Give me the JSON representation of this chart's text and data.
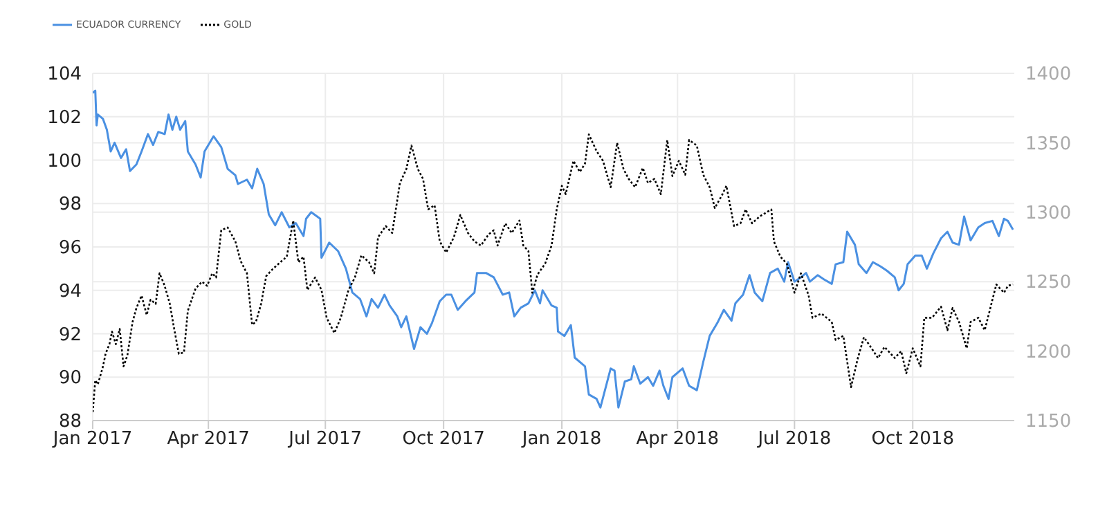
{
  "chart_data": {
    "type": "line",
    "legend": "top left",
    "grid": true,
    "xlim": [
      "2017-01-01",
      "2018-12-19"
    ],
    "xticks": [
      {
        "value": "2017-01-01",
        "label": "Jan 2017"
      },
      {
        "value": "2017-04-01",
        "label": "Apr 2017"
      },
      {
        "value": "2017-07-01",
        "label": "Jul 2017"
      },
      {
        "value": "2017-10-01",
        "label": "Oct 2017"
      },
      {
        "value": "2018-01-01",
        "label": "Jan 2018"
      },
      {
        "value": "2018-04-01",
        "label": "Apr 2018"
      },
      {
        "value": "2018-07-01",
        "label": "Jul 2018"
      },
      {
        "value": "2018-10-01",
        "label": "Oct 2018"
      }
    ],
    "ylim": [
      88,
      104
    ],
    "yticks": [
      88,
      90,
      92,
      94,
      96,
      98,
      100,
      102,
      104
    ],
    "y2lim": [
      1150,
      1400
    ],
    "y2ticks": [
      1150,
      1200,
      1250,
      1300,
      1350,
      1400
    ],
    "series": [
      {
        "name": "ECUADOR CURRENCY",
        "color": "#4a90e2",
        "line_style": "solid",
        "x": [
          "2017-01-01",
          "2017-01-03",
          "2017-01-04",
          "2017-01-05",
          "2017-01-09",
          "2017-01-12",
          "2017-01-15",
          "2017-01-18",
          "2017-01-23",
          "2017-01-27",
          "2017-01-30",
          "2017-02-04",
          "2017-02-08",
          "2017-02-13",
          "2017-02-17",
          "2017-02-21",
          "2017-02-26",
          "2017-03-01",
          "2017-03-04",
          "2017-03-07",
          "2017-03-10",
          "2017-03-14",
          "2017-03-16",
          "2017-03-22",
          "2017-03-26",
          "2017-03-29",
          "2017-04-05",
          "2017-04-11",
          "2017-04-16",
          "2017-04-22",
          "2017-04-24",
          "2017-05-01",
          "2017-05-05",
          "2017-05-09",
          "2017-05-14",
          "2017-05-18",
          "2017-05-23",
          "2017-05-28",
          "2017-06-03",
          "2017-06-08",
          "2017-06-14",
          "2017-06-16",
          "2017-06-20",
          "2017-06-27",
          "2017-06-28",
          "2017-07-04",
          "2017-07-11",
          "2017-07-17",
          "2017-07-22",
          "2017-07-28",
          "2017-08-02",
          "2017-08-06",
          "2017-08-11",
          "2017-08-16",
          "2017-08-20",
          "2017-08-26",
          "2017-08-29",
          "2017-09-02",
          "2017-09-08",
          "2017-09-13",
          "2017-09-18",
          "2017-09-22",
          "2017-09-28",
          "2017-10-03",
          "2017-10-07",
          "2017-10-12",
          "2017-10-18",
          "2017-10-25",
          "2017-10-27",
          "2017-11-03",
          "2017-11-09",
          "2017-11-16",
          "2017-11-21",
          "2017-11-25",
          "2017-11-30",
          "2017-12-06",
          "2017-12-11",
          "2017-12-15",
          "2017-12-17",
          "2017-12-24",
          "2017-12-28",
          "2017-12-29",
          "2018-01-03",
          "2018-01-08",
          "2018-01-11",
          "2018-01-19",
          "2018-01-22",
          "2018-01-28",
          "2018-01-31",
          "2018-02-04",
          "2018-02-08",
          "2018-02-11",
          "2018-02-14",
          "2018-02-19",
          "2018-02-24",
          "2018-02-26",
          "2018-03-03",
          "2018-03-09",
          "2018-03-13",
          "2018-03-18",
          "2018-03-21",
          "2018-03-25",
          "2018-03-28",
          "2018-04-05",
          "2018-04-10",
          "2018-04-16",
          "2018-04-21",
          "2018-04-26",
          "2018-05-02",
          "2018-05-07",
          "2018-05-13",
          "2018-05-16",
          "2018-05-22",
          "2018-05-27",
          "2018-05-31",
          "2018-06-06",
          "2018-06-12",
          "2018-06-18",
          "2018-06-23",
          "2018-06-26",
          "2018-07-01",
          "2018-07-06",
          "2018-07-10",
          "2018-07-13",
          "2018-07-19",
          "2018-07-24",
          "2018-07-30",
          "2018-08-02",
          "2018-08-08",
          "2018-08-11",
          "2018-08-17",
          "2018-08-20",
          "2018-08-26",
          "2018-08-31",
          "2018-09-06",
          "2018-09-11",
          "2018-09-17",
          "2018-09-20",
          "2018-09-24",
          "2018-09-27",
          "2018-10-03",
          "2018-10-08",
          "2018-10-12",
          "2018-10-17",
          "2018-10-23",
          "2018-10-28",
          "2018-11-01",
          "2018-11-06",
          "2018-11-10",
          "2018-11-15",
          "2018-11-21",
          "2018-11-26",
          "2018-12-02",
          "2018-12-07",
          "2018-12-11",
          "2018-12-14",
          "2018-12-18"
        ],
        "values": [
          103.1,
          103.2,
          101.6,
          102.1,
          101.9,
          101.4,
          100.4,
          100.8,
          100.1,
          100.5,
          99.5,
          99.8,
          100.4,
          101.2,
          100.7,
          101.3,
          101.2,
          102.1,
          101.4,
          102,
          101.4,
          101.8,
          100.4,
          99.8,
          99.2,
          100.4,
          101.1,
          100.6,
          99.6,
          99.3,
          98.9,
          99.1,
          98.7,
          99.6,
          98.9,
          97.5,
          97,
          97.6,
          96.9,
          97.1,
          96.5,
          97.3,
          97.6,
          97.3,
          95.5,
          96.2,
          95.8,
          95,
          93.9,
          93.6,
          92.8,
          93.6,
          93.2,
          93.8,
          93.3,
          92.8,
          92.3,
          92.8,
          91.3,
          92.3,
          92,
          92.5,
          93.5,
          93.8,
          93.8,
          93.1,
          93.5,
          93.9,
          94.8,
          94.8,
          94.6,
          93.8,
          93.9,
          92.8,
          93.2,
          93.4,
          94,
          93.4,
          94,
          93.3,
          93.2,
          92.1,
          91.9,
          92.4,
          90.9,
          90.5,
          89.2,
          89,
          88.6,
          89.5,
          90.4,
          90.3,
          88.6,
          89.8,
          89.9,
          90.5,
          89.7,
          90,
          89.6,
          90.3,
          89.6,
          89,
          90,
          90.4,
          89.6,
          89.4,
          90.7,
          91.9,
          92.5,
          93.1,
          92.6,
          93.4,
          93.8,
          94.7,
          93.9,
          93.5,
          94.8,
          95,
          94.4,
          95.3,
          94.4,
          94.6,
          94.8,
          94.4,
          94.7,
          94.5,
          94.3,
          95.2,
          95.3,
          96.7,
          96.1,
          95.2,
          94.8,
          95.3,
          95.1,
          94.9,
          94.6,
          94,
          94.3,
          95.2,
          95.6,
          95.6,
          95,
          95.7,
          96.4,
          96.7,
          96.2,
          96.1,
          97.4,
          96.3,
          96.9,
          97.1,
          97.2,
          96.5,
          97.3,
          97.2,
          96.8
        ]
      },
      {
        "name": "GOLD",
        "color": "#000000",
        "line_style": "dotted",
        "axis": "y2",
        "x": [
          "2017-01-01",
          "2017-01-03",
          "2017-01-05",
          "2017-01-09",
          "2017-01-11",
          "2017-01-14",
          "2017-01-16",
          "2017-01-19",
          "2017-01-22",
          "2017-01-25",
          "2017-01-28",
          "2017-02-01",
          "2017-02-04",
          "2017-02-08",
          "2017-02-12",
          "2017-02-15",
          "2017-02-19",
          "2017-02-22",
          "2017-02-26",
          "2017-03-02",
          "2017-03-05",
          "2017-03-09",
          "2017-03-13",
          "2017-03-16",
          "2017-03-22",
          "2017-03-27",
          "2017-03-31",
          "2017-04-04",
          "2017-04-07",
          "2017-04-11",
          "2017-04-16",
          "2017-04-22",
          "2017-04-26",
          "2017-05-01",
          "2017-05-05",
          "2017-05-08",
          "2017-05-12",
          "2017-05-16",
          "2017-05-21",
          "2017-05-27",
          "2017-06-01",
          "2017-06-06",
          "2017-06-10",
          "2017-06-14",
          "2017-06-17",
          "2017-06-23",
          "2017-06-28",
          "2017-07-02",
          "2017-07-08",
          "2017-07-13",
          "2017-07-19",
          "2017-07-24",
          "2017-07-29",
          "2017-08-04",
          "2017-08-08",
          "2017-08-11",
          "2017-08-17",
          "2017-08-22",
          "2017-08-28",
          "2017-09-02",
          "2017-09-06",
          "2017-09-11",
          "2017-09-15",
          "2017-09-19",
          "2017-09-24",
          "2017-09-28",
          "2017-10-03",
          "2017-10-09",
          "2017-10-14",
          "2017-10-20",
          "2017-10-25",
          "2017-10-30",
          "2017-11-05",
          "2017-11-09",
          "2017-11-12",
          "2017-11-18",
          "2017-11-23",
          "2017-11-29",
          "2017-12-02",
          "2017-12-06",
          "2017-12-09",
          "2017-12-13",
          "2017-12-19",
          "2017-12-24",
          "2017-12-28",
          "2018-01-01",
          "2018-01-04",
          "2018-01-10",
          "2018-01-15",
          "2018-01-19",
          "2018-01-22",
          "2018-01-28",
          "2018-02-02",
          "2018-02-08",
          "2018-02-13",
          "2018-02-18",
          "2018-02-22",
          "2018-02-27",
          "2018-03-05",
          "2018-03-09",
          "2018-03-14",
          "2018-03-19",
          "2018-03-24",
          "2018-03-28",
          "2018-04-02",
          "2018-04-07",
          "2018-04-10",
          "2018-04-16",
          "2018-04-21",
          "2018-04-26",
          "2018-04-30",
          "2018-05-06",
          "2018-05-09",
          "2018-05-15",
          "2018-05-20",
          "2018-05-24",
          "2018-05-29",
          "2018-06-04",
          "2018-06-13",
          "2018-06-15",
          "2018-06-20",
          "2018-06-25",
          "2018-07-01",
          "2018-07-06",
          "2018-07-12",
          "2018-07-15",
          "2018-07-22",
          "2018-07-30",
          "2018-08-02",
          "2018-08-08",
          "2018-08-14",
          "2018-08-19",
          "2018-08-24",
          "2018-08-30",
          "2018-09-04",
          "2018-09-09",
          "2018-09-17",
          "2018-09-22",
          "2018-09-26",
          "2018-10-01",
          "2018-10-07",
          "2018-10-10",
          "2018-10-16",
          "2018-10-23",
          "2018-10-28",
          "2018-11-01",
          "2018-11-06",
          "2018-11-12",
          "2018-11-15",
          "2018-11-21",
          "2018-11-26",
          "2018-12-02",
          "2018-12-05",
          "2018-12-11",
          "2018-12-14",
          "2018-12-18"
        ],
        "values": [
          1156,
          1179,
          1176,
          1189,
          1198,
          1205,
          1214,
          1205,
          1216,
          1189,
          1197,
          1221,
          1231,
          1240,
          1226,
          1237,
          1234,
          1256,
          1247,
          1234,
          1218,
          1198,
          1199,
          1229,
          1245,
          1250,
          1247,
          1256,
          1253,
          1287,
          1289,
          1279,
          1265,
          1256,
          1219,
          1221,
          1234,
          1254,
          1259,
          1264,
          1268,
          1294,
          1264,
          1268,
          1244,
          1253,
          1244,
          1224,
          1213,
          1224,
          1244,
          1253,
          1269,
          1264,
          1256,
          1282,
          1290,
          1285,
          1321,
          1331,
          1348,
          1331,
          1324,
          1302,
          1305,
          1279,
          1271,
          1282,
          1298,
          1285,
          1279,
          1276,
          1284,
          1287,
          1276,
          1292,
          1285,
          1294,
          1276,
          1272,
          1242,
          1255,
          1263,
          1276,
          1302,
          1319,
          1313,
          1337,
          1329,
          1335,
          1356,
          1344,
          1337,
          1318,
          1350,
          1331,
          1324,
          1318,
          1332,
          1321,
          1324,
          1313,
          1352,
          1326,
          1337,
          1327,
          1352,
          1348,
          1327,
          1318,
          1303,
          1313,
          1319,
          1290,
          1292,
          1302,
          1292,
          1297,
          1302,
          1279,
          1268,
          1263,
          1242,
          1256,
          1240,
          1224,
          1227,
          1221,
          1208,
          1211,
          1174,
          1194,
          1210,
          1202,
          1195,
          1203,
          1195,
          1200,
          1184,
          1202,
          1189,
          1224,
          1224,
          1232,
          1215,
          1231,
          1221,
          1202,
          1221,
          1224,
          1215,
          1237,
          1248,
          1242,
          1247,
          1248
        ]
      }
    ]
  }
}
